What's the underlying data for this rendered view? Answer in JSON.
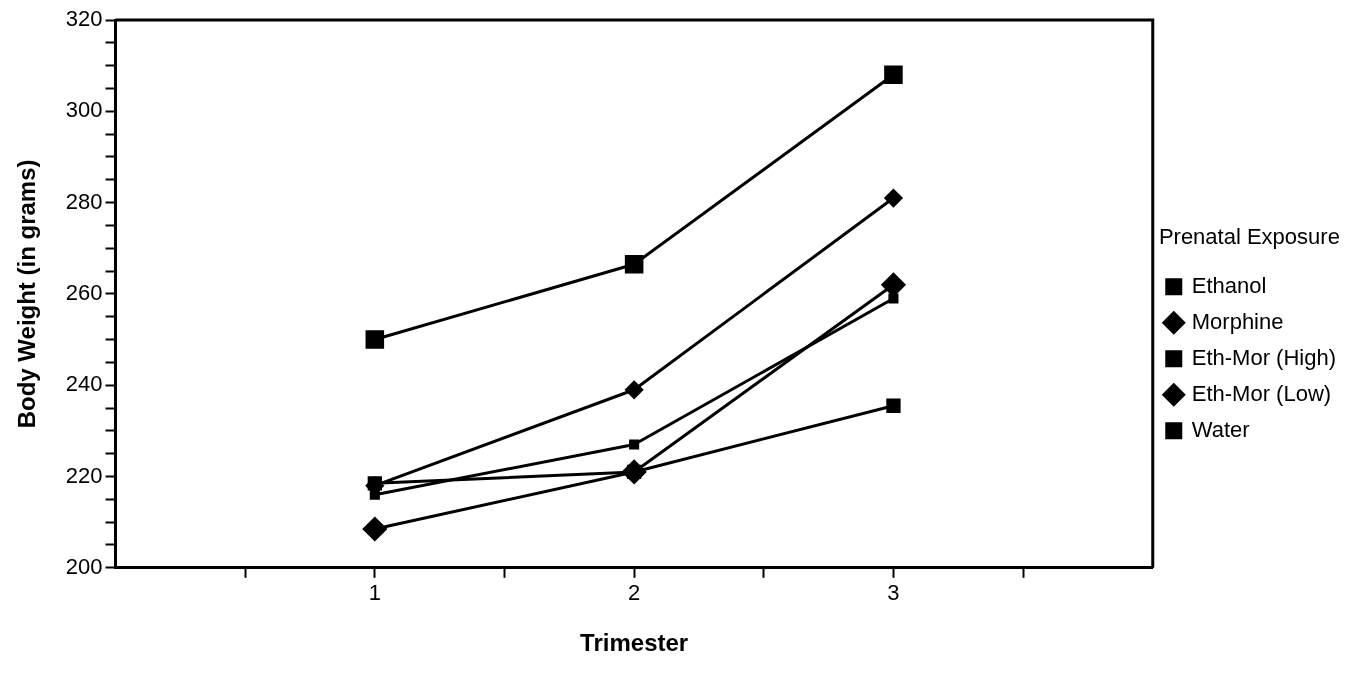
{
  "chart_data": {
    "type": "line",
    "xlabel": "Trimester",
    "ylabel": "Body Weight (in grams)",
    "legend_title": "Prenatal Exposure",
    "legend": "right",
    "grid": false,
    "x": [
      1,
      2,
      3
    ],
    "xlim": [
      0,
      4
    ],
    "xticks": [
      {
        "value": 0.5,
        "label": null
      },
      1,
      {
        "value": 1.5,
        "label": null
      },
      2,
      {
        "value": 2.5,
        "label": null
      },
      3,
      {
        "value": 3.5,
        "label": null
      }
    ],
    "ylim": [
      200,
      320
    ],
    "yticks": [
      200,
      {
        "value": 205,
        "label": null
      },
      {
        "value": 210,
        "label": null
      },
      {
        "value": 215,
        "label": null
      },
      220,
      {
        "value": 225,
        "label": null
      },
      {
        "value": 230,
        "label": null
      },
      {
        "value": 235,
        "label": null
      },
      240,
      {
        "value": 245,
        "label": null
      },
      {
        "value": 250,
        "label": null
      },
      {
        "value": 255,
        "label": null
      },
      260,
      {
        "value": 265,
        "label": null
      },
      {
        "value": 270,
        "label": null
      },
      {
        "value": 275,
        "label": null
      },
      280,
      {
        "value": 285,
        "label": null
      },
      {
        "value": 290,
        "label": null
      },
      {
        "value": 295,
        "label": null
      },
      300,
      {
        "value": 305,
        "label": null
      },
      {
        "value": 310,
        "label": null
      },
      {
        "value": 315,
        "label": null
      },
      320
    ],
    "series": [
      {
        "name": "Ethanol",
        "color": "#000000",
        "marker": "square",
        "values": [
          216,
          227,
          259
        ]
      },
      {
        "name": "Morphine",
        "color": "#000000",
        "marker": "diamond",
        "values": [
          218,
          239,
          281
        ]
      },
      {
        "name": "Eth-Mor (High)",
        "color": "#000000",
        "marker": "square",
        "values": [
          218.5,
          221,
          235.5
        ]
      },
      {
        "name": "Eth-Mor (Low)",
        "color": "#000000",
        "marker": "diamond",
        "values": [
          208.5,
          221,
          262
        ]
      },
      {
        "name": "Water",
        "color": "#000000",
        "marker": "square",
        "values": [
          250,
          266.5,
          308
        ]
      }
    ]
  }
}
